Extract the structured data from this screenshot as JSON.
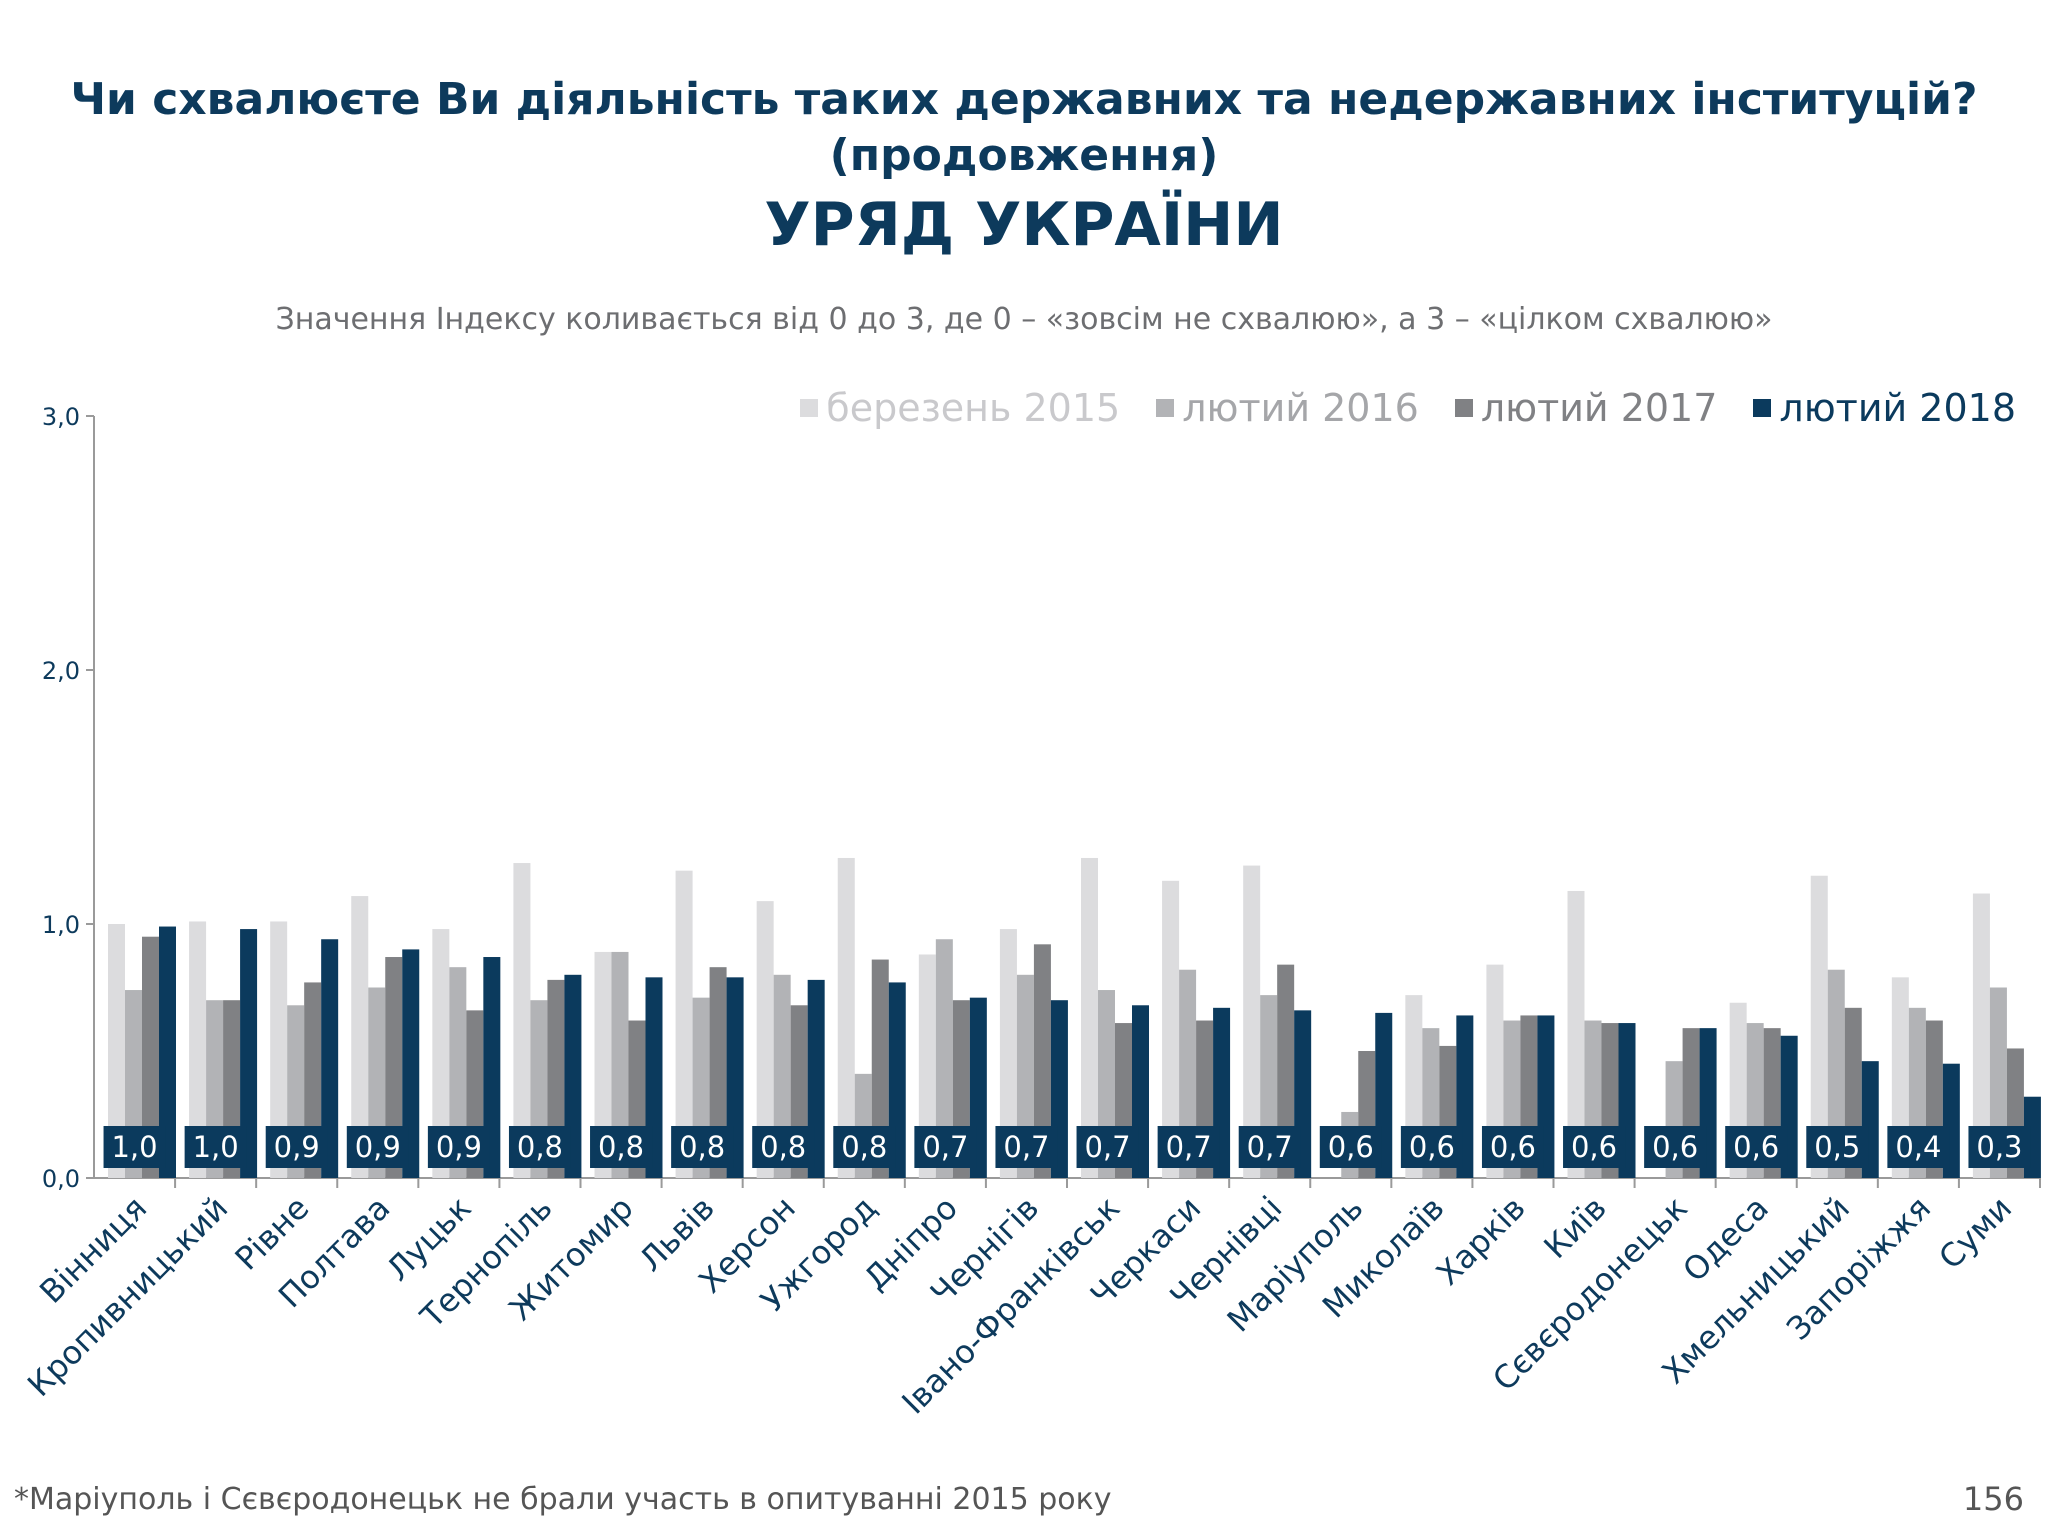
{
  "header": {
    "question": "Чи схвалюєте Ви діяльність таких державних та недержавних інституцій?",
    "question_cont": "(продовження)",
    "main_title": "УРЯД УКРАЇНИ",
    "subtitle": "Значення Індексу коливається від 0 до 3, де 0 – «зовсім не схвалюю», а 3 – «цілком схвалюю»"
  },
  "footnote": "*Маріуполь і Сєвєродонецьк не брали участь в опитуванні 2015 року",
  "page_number": "156",
  "chart_data": {
    "type": "bar",
    "ylim": [
      0,
      3
    ],
    "yticks": [
      "0,0",
      "1,0",
      "2,0",
      "3,0"
    ],
    "legend_position": "top-right",
    "categories": [
      "Вінниця",
      "Кропивницький",
      "Рівне",
      "Полтава",
      "Луцьк",
      "Тернопіль",
      "Житомир",
      "Львів",
      "Херсон",
      "Ужгород",
      "Дніпро",
      "Чернігів",
      "Івано-Франківськ",
      "Черкаси",
      "Чернівці",
      "Маріуполь",
      "Миколаїв",
      "Харків",
      "Київ",
      "Сєвєродонецьк",
      "Одеса",
      "Хмельницький",
      "Запоріжжя",
      "Суми"
    ],
    "series": [
      {
        "name": "березень 2015",
        "color": "#dcdcde",
        "values": [
          1.0,
          1.01,
          1.01,
          1.11,
          0.98,
          1.24,
          0.89,
          1.21,
          1.09,
          1.26,
          0.88,
          0.98,
          1.26,
          1.17,
          1.23,
          null,
          0.72,
          0.84,
          1.13,
          null,
          0.69,
          1.19,
          0.79,
          1.12
        ]
      },
      {
        "name": "лютий 2016",
        "color": "#b2b3b6",
        "values": [
          0.74,
          0.7,
          0.68,
          0.75,
          0.83,
          0.7,
          0.89,
          0.71,
          0.8,
          0.41,
          0.94,
          0.8,
          0.74,
          0.82,
          0.72,
          0.26,
          0.59,
          0.62,
          0.62,
          0.46,
          0.61,
          0.82,
          0.67,
          0.75
        ]
      },
      {
        "name": "лютий 2017",
        "color": "#808184",
        "values": [
          0.95,
          0.7,
          0.77,
          0.87,
          0.66,
          0.78,
          0.62,
          0.83,
          0.68,
          0.86,
          0.7,
          0.92,
          0.61,
          0.62,
          0.84,
          0.5,
          0.52,
          0.64,
          0.61,
          0.59,
          0.59,
          0.67,
          0.62,
          0.51
        ]
      },
      {
        "name": "лютий 2018",
        "color": "#0b3a5d",
        "values": [
          0.99,
          0.98,
          0.94,
          0.9,
          0.87,
          0.8,
          0.79,
          0.79,
          0.78,
          0.77,
          0.71,
          0.7,
          0.68,
          0.67,
          0.66,
          0.65,
          0.64,
          0.64,
          0.61,
          0.59,
          0.56,
          0.46,
          0.45,
          0.32
        ]
      }
    ],
    "data_labels": [
      "1,0",
      "1,0",
      "0,9",
      "0,9",
      "0,9",
      "0,8",
      "0,8",
      "0,8",
      "0,8",
      "0,8",
      "0,7",
      "0,7",
      "0,7",
      "0,7",
      "0,7",
      "0,6",
      "0,6",
      "0,6",
      "0,6",
      "0,6",
      "0,6",
      "0,5",
      "0,4",
      "0,3"
    ]
  }
}
